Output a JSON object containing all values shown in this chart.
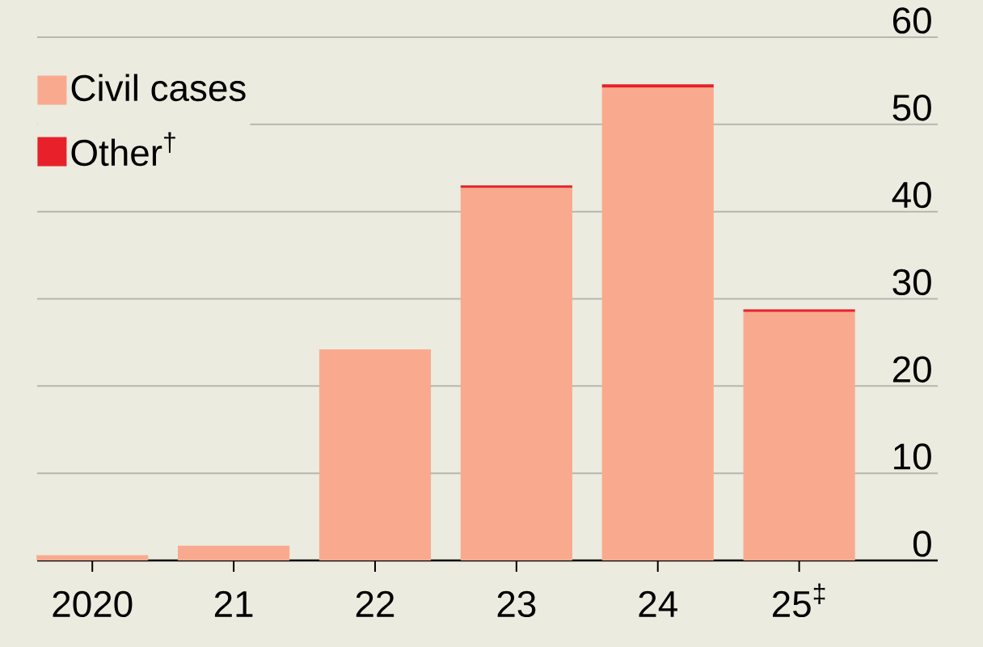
{
  "chart_data": {
    "type": "bar",
    "stacked": true,
    "categories": [
      "2020",
      "21",
      "22",
      "23",
      "24",
      "25$^{‡}$"
    ],
    "series": [
      {
        "name": "Civil cases",
        "color": "#f9aa8e",
        "values": [
          0.6,
          1.7,
          24.2,
          42.7,
          54.2,
          28.5
        ]
      },
      {
        "name": "Other$^{†}$",
        "color": "#e8202a",
        "values": [
          0,
          0,
          0,
          0.3,
          0.4,
          0.3
        ]
      }
    ],
    "ylim": [
      0,
      60
    ],
    "yticks": [
      0,
      10,
      20,
      30,
      40,
      50,
      60
    ],
    "grid": "y",
    "legend": "top left"
  }
}
